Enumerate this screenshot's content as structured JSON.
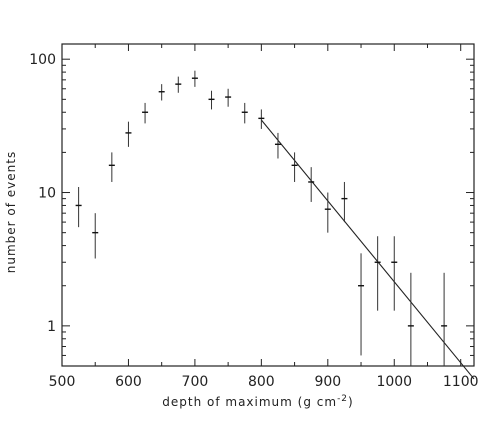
{
  "chart_data": {
    "type": "scatter",
    "xlabel": "depth of maximum (g cm",
    "xlabel_sup": "-2",
    "xlabel_close": ")",
    "ylabel": "number of events",
    "xlim": [
      500,
      1120
    ],
    "ylim": [
      0.5,
      130
    ],
    "yscale": "log",
    "x_ticks": [
      500,
      600,
      700,
      800,
      900,
      1000,
      1100
    ],
    "y_ticks": [
      1,
      10,
      100
    ],
    "points": [
      {
        "x": 525,
        "y": 8,
        "ylo": 5.5,
        "yhi": 11
      },
      {
        "x": 550,
        "y": 5,
        "ylo": 3.2,
        "yhi": 7
      },
      {
        "x": 575,
        "y": 16,
        "ylo": 12,
        "yhi": 20
      },
      {
        "x": 600,
        "y": 28,
        "ylo": 22,
        "yhi": 34
      },
      {
        "x": 625,
        "y": 40,
        "ylo": 33,
        "yhi": 47
      },
      {
        "x": 650,
        "y": 57,
        "ylo": 49,
        "yhi": 65
      },
      {
        "x": 675,
        "y": 65,
        "ylo": 56,
        "yhi": 74
      },
      {
        "x": 700,
        "y": 72,
        "ylo": 62,
        "yhi": 82
      },
      {
        "x": 725,
        "y": 50,
        "ylo": 42,
        "yhi": 58
      },
      {
        "x": 750,
        "y": 52,
        "ylo": 44,
        "yhi": 60
      },
      {
        "x": 775,
        "y": 40,
        "ylo": 33,
        "yhi": 47
      },
      {
        "x": 800,
        "y": 36,
        "ylo": 30,
        "yhi": 42
      },
      {
        "x": 825,
        "y": 23,
        "ylo": 18,
        "yhi": 28
      },
      {
        "x": 850,
        "y": 16,
        "ylo": 12,
        "yhi": 20
      },
      {
        "x": 875,
        "y": 12,
        "ylo": 8.5,
        "yhi": 15.5
      },
      {
        "x": 900,
        "y": 7.5,
        "ylo": 5,
        "yhi": 10
      },
      {
        "x": 925,
        "y": 9,
        "ylo": 6,
        "yhi": 12
      },
      {
        "x": 950,
        "y": 2,
        "ylo": 0.6,
        "yhi": 3.5
      },
      {
        "x": 975,
        "y": 3,
        "ylo": 1.3,
        "yhi": 4.7
      },
      {
        "x": 1000,
        "y": 3,
        "ylo": 1.3,
        "yhi": 4.7
      },
      {
        "x": 1025,
        "y": 1,
        "ylo": 0.5,
        "yhi": 2.5
      },
      {
        "x": 1075,
        "y": 1,
        "ylo": 0.5,
        "yhi": 2.5
      }
    ],
    "fit_line": {
      "x": [
        800,
        1120
      ],
      "y": [
        35,
        0.4
      ]
    },
    "grid": false,
    "legend": "none"
  }
}
